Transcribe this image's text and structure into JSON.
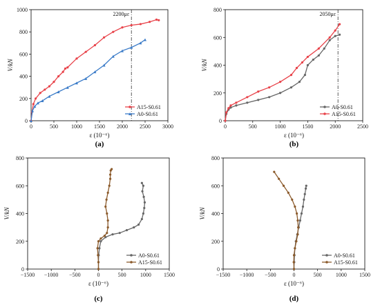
{
  "chart_data": [
    {
      "id": "a",
      "type": "line",
      "panel_label": "(a)",
      "xlabel": "ε (10⁻⁶)",
      "ylabel": "V/kN",
      "xlim": [
        0,
        3000
      ],
      "ylim": [
        0,
        1000
      ],
      "xticks": [
        "0",
        "500",
        "1000",
        "1500",
        "2000",
        "2500",
        "3000"
      ],
      "yticks": [
        "0",
        "200",
        "400",
        "600",
        "800",
        "1000"
      ],
      "legend_position": "bottom-right",
      "annotation": {
        "text": "2200με",
        "x": 2200
      },
      "series": [
        {
          "name": "A15-S0.61",
          "color": "#e8434a",
          "marker": "circle",
          "x": [
            0,
            20,
            50,
            100,
            200,
            300,
            400,
            500,
            600,
            700,
            750,
            800,
            1000,
            1200,
            1400,
            1600,
            1800,
            2000,
            2200,
            2400,
            2600,
            2750,
            2800
          ],
          "y": [
            0,
            80,
            150,
            200,
            250,
            280,
            310,
            350,
            400,
            440,
            470,
            480,
            560,
            620,
            680,
            750,
            800,
            840,
            860,
            870,
            890,
            910,
            905
          ]
        },
        {
          "name": "A0-S0.61",
          "color": "#3a7bc8",
          "marker": "triangle",
          "x": [
            0,
            30,
            80,
            150,
            250,
            400,
            600,
            800,
            1000,
            1200,
            1400,
            1600,
            1800,
            2000,
            2200,
            2400,
            2500
          ],
          "y": [
            0,
            90,
            130,
            160,
            180,
            220,
            260,
            300,
            340,
            380,
            440,
            500,
            580,
            630,
            660,
            700,
            730
          ]
        }
      ]
    },
    {
      "id": "b",
      "type": "line",
      "panel_label": "(b)",
      "xlabel": "ε (10⁻⁶)",
      "ylabel": "V/kN",
      "xlim": [
        0,
        2500
      ],
      "ylim": [
        0,
        800
      ],
      "xticks": [
        "0",
        "500",
        "1000",
        "1500",
        "2000",
        "2500"
      ],
      "yticks": [
        "0",
        "200",
        "400",
        "600",
        "800"
      ],
      "legend_position": "bottom-right",
      "annotation": {
        "text": "2050με",
        "x": 2050
      },
      "series": [
        {
          "name": "A0-S0.61",
          "color": "#666666",
          "marker": "circle",
          "x": [
            0,
            20,
            60,
            100,
            200,
            400,
            600,
            800,
            1000,
            1200,
            1350,
            1450,
            1500,
            1600,
            1700,
            1800,
            1900,
            2000,
            2080
          ],
          "y": [
            0,
            50,
            80,
            95,
            110,
            130,
            150,
            170,
            200,
            240,
            280,
            330,
            400,
            440,
            470,
            520,
            580,
            610,
            620
          ]
        },
        {
          "name": "A15-S0.61",
          "color": "#e8434a",
          "marker": "circle",
          "x": [
            0,
            20,
            60,
            100,
            200,
            400,
            600,
            800,
            1000,
            1200,
            1300,
            1400,
            1500,
            1700,
            1900,
            2000,
            2080
          ],
          "y": [
            0,
            60,
            90,
            110,
            130,
            170,
            210,
            240,
            280,
            330,
            380,
            420,
            460,
            520,
            600,
            650,
            695
          ]
        }
      ]
    },
    {
      "id": "c",
      "type": "line",
      "panel_label": "(c)",
      "xlabel": "ε (10⁻⁶)",
      "ylabel": "V/kN",
      "xlim": [
        -1500,
        1500
      ],
      "ylim": [
        0,
        800
      ],
      "xticks": [
        "−1500",
        "−1000",
        "−500",
        "0",
        "500",
        "1000",
        "1500"
      ],
      "yticks": [
        "0",
        "200",
        "400",
        "600",
        "800"
      ],
      "legend_position": "bottom-right",
      "series": [
        {
          "name": "A0-S0.61",
          "color": "#666666",
          "marker": "circle",
          "x": [
            0,
            0,
            5,
            20,
            50,
            150,
            300,
            450,
            600,
            750,
            850,
            920,
            950,
            970,
            980,
            960,
            930,
            950,
            920
          ],
          "y": [
            0,
            50,
            100,
            150,
            200,
            230,
            250,
            260,
            280,
            300,
            320,
            360,
            400,
            440,
            480,
            520,
            560,
            600,
            620
          ]
        },
        {
          "name": "A15-S0.61",
          "color": "#8b5a2b",
          "marker": "circle",
          "x": [
            0,
            0,
            -10,
            -20,
            0,
            50,
            130,
            180,
            200,
            200,
            180,
            150,
            170,
            200,
            230,
            250,
            250,
            260,
            280
          ],
          "y": [
            0,
            50,
            100,
            150,
            200,
            220,
            240,
            260,
            300,
            350,
            400,
            450,
            500,
            550,
            600,
            650,
            680,
            710,
            720
          ]
        }
      ]
    },
    {
      "id": "d",
      "type": "line",
      "panel_label": "(d)",
      "xlabel": "ε (10⁻⁶)",
      "ylabel": "V/kN",
      "xlim": [
        -1500,
        1500
      ],
      "ylim": [
        0,
        800
      ],
      "xticks": [
        "−1500",
        "−1000",
        "−500",
        "0",
        "500",
        "1000",
        "1500"
      ],
      "yticks": [
        "0",
        "200",
        "400",
        "600",
        "800"
      ],
      "legend_position": "bottom-right",
      "series": [
        {
          "name": "A0-S0.61",
          "color": "#666666",
          "marker": "circle",
          "x": [
            0,
            5,
            10,
            20,
            40,
            70,
            100,
            130,
            160,
            190,
            210,
            230,
            250,
            260
          ],
          "y": [
            0,
            50,
            100,
            150,
            200,
            250,
            300,
            350,
            400,
            450,
            500,
            540,
            580,
            600
          ]
        },
        {
          "name": "A15-S0.61",
          "color": "#8b5a2b",
          "marker": "circle",
          "x": [
            0,
            -5,
            0,
            20,
            50,
            80,
            90,
            80,
            60,
            20,
            -40,
            -120,
            -220,
            -320,
            -420
          ],
          "y": [
            0,
            50,
            100,
            150,
            200,
            250,
            300,
            350,
            400,
            450,
            500,
            550,
            600,
            650,
            700
          ]
        }
      ]
    }
  ]
}
